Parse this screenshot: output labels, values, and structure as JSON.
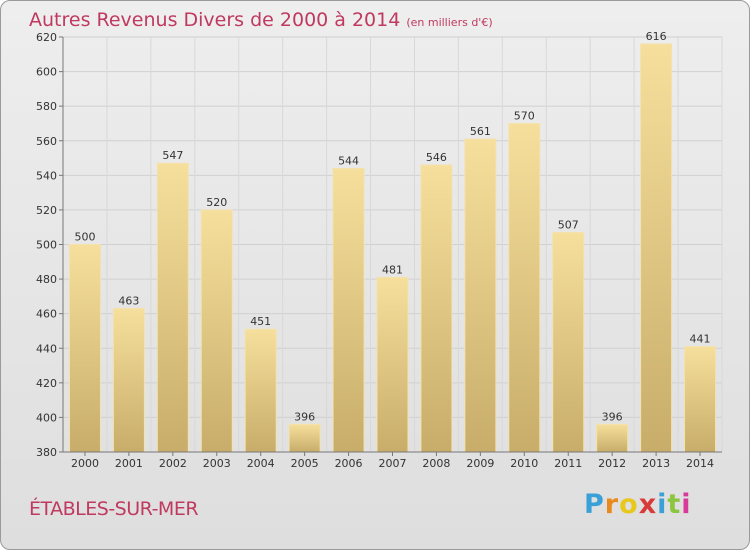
{
  "title": "Autres Revenus Divers de 2000 à 2014",
  "subtitle": "(en milliers d'€)",
  "place": "ÉTABLES-SUR-MER",
  "logo": {
    "letters": [
      "P",
      "r",
      "o",
      "x",
      "i",
      "t",
      "i"
    ],
    "colors": [
      "#3aa0d8",
      "#e88a1c",
      "#e8c81c",
      "#d83a3a",
      "#3aa0d8",
      "#8cc63f",
      "#d83a9a"
    ]
  },
  "chart_data": {
    "type": "bar",
    "title": "Autres Revenus Divers de 2000 à 2014",
    "subtitle": "(en milliers d'€)",
    "categories": [
      "2000",
      "2001",
      "2002",
      "2003",
      "2004",
      "2005",
      "2006",
      "2007",
      "2008",
      "2009",
      "2010",
      "2011",
      "2012",
      "2013",
      "2014"
    ],
    "values": [
      500,
      463,
      547,
      520,
      451,
      396,
      544,
      481,
      546,
      561,
      570,
      507,
      396,
      616,
      441
    ],
    "ylim": [
      380,
      620
    ],
    "yticks": [
      380,
      400,
      420,
      440,
      460,
      480,
      500,
      520,
      540,
      560,
      580,
      600,
      620
    ],
    "grid": true,
    "legend": "none"
  }
}
